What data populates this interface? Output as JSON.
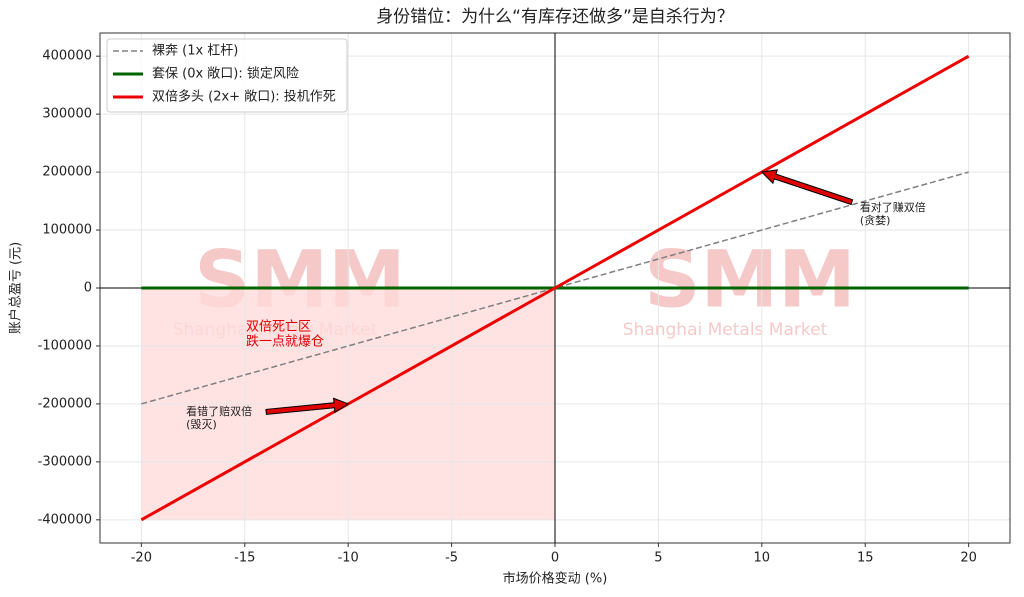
{
  "chart_data": {
    "type": "line",
    "title": "身份错位：为什么“有库存还做多”是自杀行为？",
    "xlabel": "市场价格变动 (%)",
    "ylabel": "账户总盈亏 (元)",
    "x": [
      -20,
      0,
      20
    ],
    "series": [
      {
        "name": "裸奔 (1x 杠杆)",
        "color": "#808080",
        "dash": "dashed",
        "values": [
          -200000,
          0,
          200000
        ]
      },
      {
        "name": "套保 (0x 敞口): 锁定风险",
        "color": "#006400",
        "dash": "solid",
        "values": [
          0,
          0,
          0
        ]
      },
      {
        "name": "双倍多头 (2x+ 敞口): 投机作死",
        "color": "#ee0000",
        "dash": "solid",
        "values": [
          -400000,
          0,
          400000
        ]
      }
    ],
    "xlim": [
      -22,
      22
    ],
    "ylim": [
      -440000,
      440000
    ],
    "xticks": [
      -20,
      -15,
      -10,
      -5,
      0,
      5,
      10,
      15,
      20
    ],
    "yticks": [
      -400000,
      -300000,
      -200000,
      -100000,
      0,
      100000,
      200000,
      300000,
      400000
    ],
    "grid": true,
    "legend": "upper left",
    "shade": {
      "x": [
        -20,
        0
      ],
      "y": [
        -400000,
        0
      ],
      "color": "#ffdada",
      "label": [
        "双倍死亡区",
        "跌一点就爆仓"
      ]
    },
    "annotations": [
      {
        "text": [
          "看对了赚双倍",
          "(贪婪)"
        ],
        "xy": [
          10,
          200000
        ]
      },
      {
        "text": [
          "看错了赔双倍",
          "(毁灭)"
        ],
        "xy": [
          -10,
          -200000
        ]
      }
    ],
    "watermark": [
      "SMM",
      "Shanghai Metals Market"
    ]
  }
}
